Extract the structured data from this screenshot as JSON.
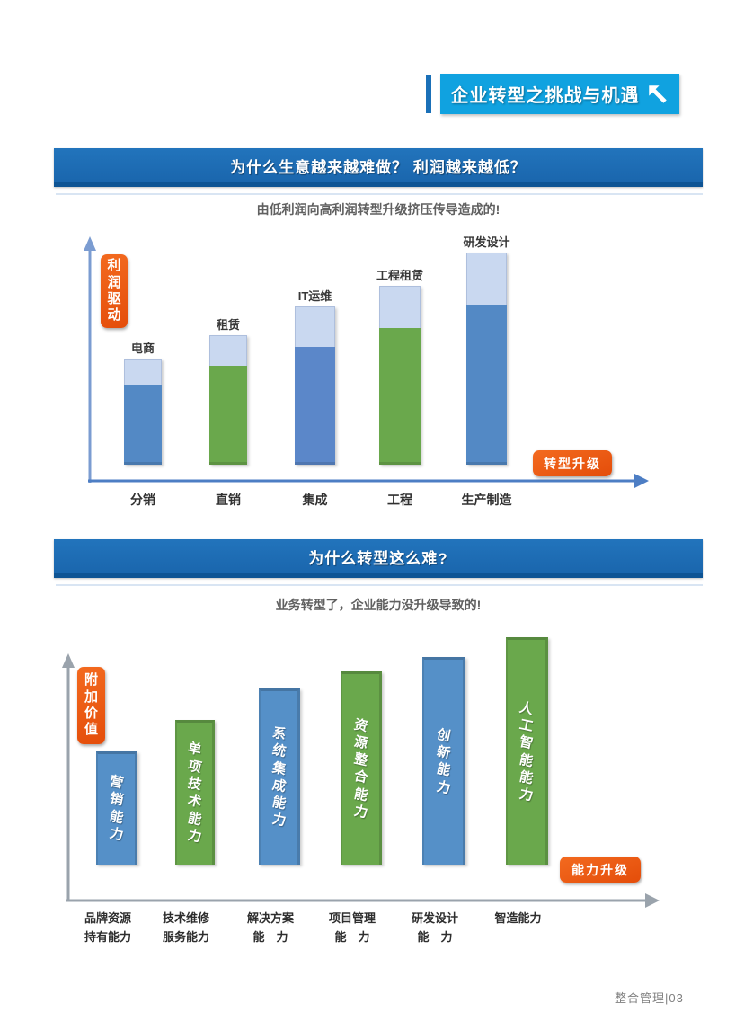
{
  "banner": {
    "title": "企业转型之挑战与机遇"
  },
  "footer": {
    "text": "整合管理|03"
  },
  "colors": {
    "banner_blue": "#10a2e0",
    "header_blue": "#1b6bb1",
    "badge_orange": "#ea5514",
    "steel_blue": "#5389c5",
    "green": "#6aa84c",
    "light_blue_segment": "#c9d8f0"
  },
  "section1": {
    "header": "为什么生意越来越难做？ 利润越来越低？",
    "subtitle": "由低利润向高利润转型升级挤压传导造成的!",
    "y_badge": "利润驱动",
    "x_badge": "转型升级"
  },
  "section2": {
    "header": "为什么转型这么难?",
    "subtitle": "业务转型了，企业能力没升级导致的!",
    "y_badge": "附加价值",
    "x_badge": "能力升级"
  },
  "chart_data": [
    {
      "type": "bar",
      "stacked": true,
      "title": "为什么生意越来越难做？ 利润越来越低？",
      "subtitle": "由低利润向高利润转型升级挤压传导造成的!",
      "categories": [
        "分销",
        "直销",
        "集成",
        "工程",
        "生产制造"
      ],
      "bar_top_labels": [
        "电商",
        "租赁",
        "IT运维",
        "工程租赁",
        "研发设计"
      ],
      "series": [
        {
          "name": "main_segment",
          "values": [
            34,
            42,
            50,
            58,
            68
          ],
          "colors": [
            "#5389c5",
            "#6aa84c",
            "#5b87c9",
            "#6aa84c",
            "#5389c5"
          ]
        },
        {
          "name": "light_top_segment",
          "values": [
            11,
            13,
            17,
            18,
            22
          ],
          "color": "#c9d8f0"
        }
      ],
      "ylim": [
        0,
        100
      ],
      "grid": false,
      "legend": "none",
      "y_axis_annotation": "利润驱动",
      "x_axis_annotation": "转型升级"
    },
    {
      "type": "bar",
      "stacked": false,
      "title": "为什么转型这么难?",
      "subtitle": "业务转型了，企业能力没升级导致的!",
      "categories": [
        "品牌资源持有能力",
        "技术维修服务能力",
        "解决方案能力",
        "项目管理能力",
        "研发设计能力",
        "智造能力"
      ],
      "category_lines": [
        "品牌资源\n持有能力",
        "技术维修\n服务能力",
        "解决方案\n能　力",
        "项目管理\n能　力",
        "研发设计\n能　力",
        "智造能力"
      ],
      "bar_inner_labels": [
        "营销能力",
        "单项技术能力",
        "系统集成能力",
        "资源整合能力",
        "创新能力",
        "人工智能能力"
      ],
      "values": [
        47,
        60,
        73,
        80,
        86,
        94
      ],
      "colors": [
        "#5590c8",
        "#6aa84c",
        "#5590c8",
        "#6aa84c",
        "#5590c8",
        "#6aa84c"
      ],
      "ylim": [
        0,
        100
      ],
      "grid": false,
      "legend": "none",
      "y_axis_annotation": "附加价值",
      "x_axis_annotation": "能力升级"
    }
  ]
}
